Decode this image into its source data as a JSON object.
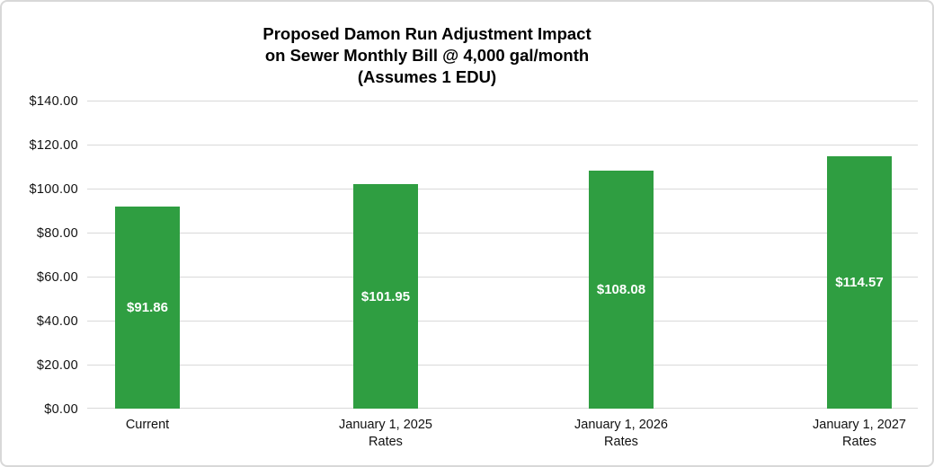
{
  "chart_data": {
    "type": "bar",
    "title": "Proposed Damon Run Adjustment Impact on Sewer Monthly Bill @ 4,000 gal/month (Assumes 1 EDU)",
    "title_lines": [
      "Proposed Damon Run Adjustment Impact",
      "on Sewer Monthly Bill @ 4,000 gal/month",
      "(Assumes 1 EDU)"
    ],
    "categories": [
      "Current",
      "January 1, 2025 Rates",
      "January 1, 2026 Rates",
      "January 1, 2027 Rates"
    ],
    "category_lines": [
      [
        "Current",
        ""
      ],
      [
        "January 1, 2025",
        "Rates"
      ],
      [
        "January 1, 2026",
        "Rates"
      ],
      [
        "January 1, 2027",
        "Rates"
      ]
    ],
    "values": [
      91.86,
      101.95,
      108.08,
      114.57
    ],
    "bar_labels": [
      "$91.86",
      "$101.95",
      "$108.08",
      "$114.57"
    ],
    "y_ticks": [
      "$140.00",
      "$120.00",
      "$100.00",
      "$80.00",
      "$60.00",
      "$40.00",
      "$20.00",
      "$0.00"
    ],
    "ylim": [
      0,
      140
    ],
    "y_tick_step": 20,
    "xlabel": "",
    "ylabel": "",
    "grid": "horizontal",
    "legend": "none",
    "bar_color": "#2f9e41",
    "bar_label_color": "#ffffff",
    "gridline_color": "#d9d9d9",
    "background_color": "#ffffff",
    "border_color": "#d8d8d8"
  }
}
